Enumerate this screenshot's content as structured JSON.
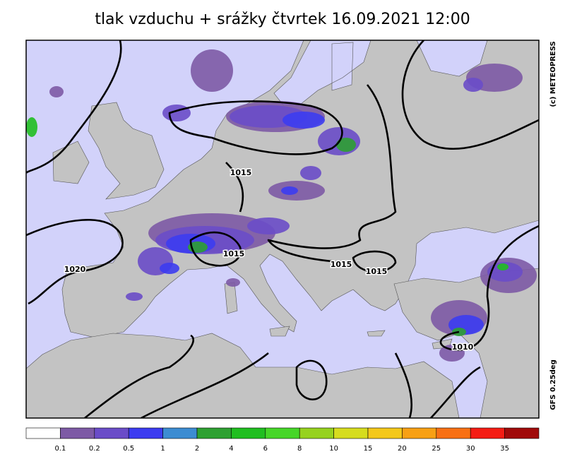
{
  "header": {
    "title": "tlak vzduchu + srážky čtvrtek 16.09.2021 12:00"
  },
  "side": {
    "copyright": "(c) METEOPRESS",
    "model": "GFS 0.25deg"
  },
  "isobar_labels": [
    "1015",
    "1015",
    "1015",
    "1015",
    "1020",
    "1010"
  ],
  "legend": {
    "colors": [
      "#ffffff",
      "#7d5aa5",
      "#6a4cc8",
      "#3c3cf0",
      "#3c8cd2",
      "#2ea032",
      "#20be20",
      "#46d628",
      "#96d21e",
      "#d6dc1e",
      "#f4c81a",
      "#f8a014",
      "#f87014",
      "#f41c14",
      "#a00a0a"
    ],
    "labels": [
      "0.1",
      "0.2",
      "0.5",
      "1",
      "2",
      "4",
      "6",
      "8",
      "10",
      "15",
      "20",
      "25",
      "30",
      "35"
    ]
  }
}
